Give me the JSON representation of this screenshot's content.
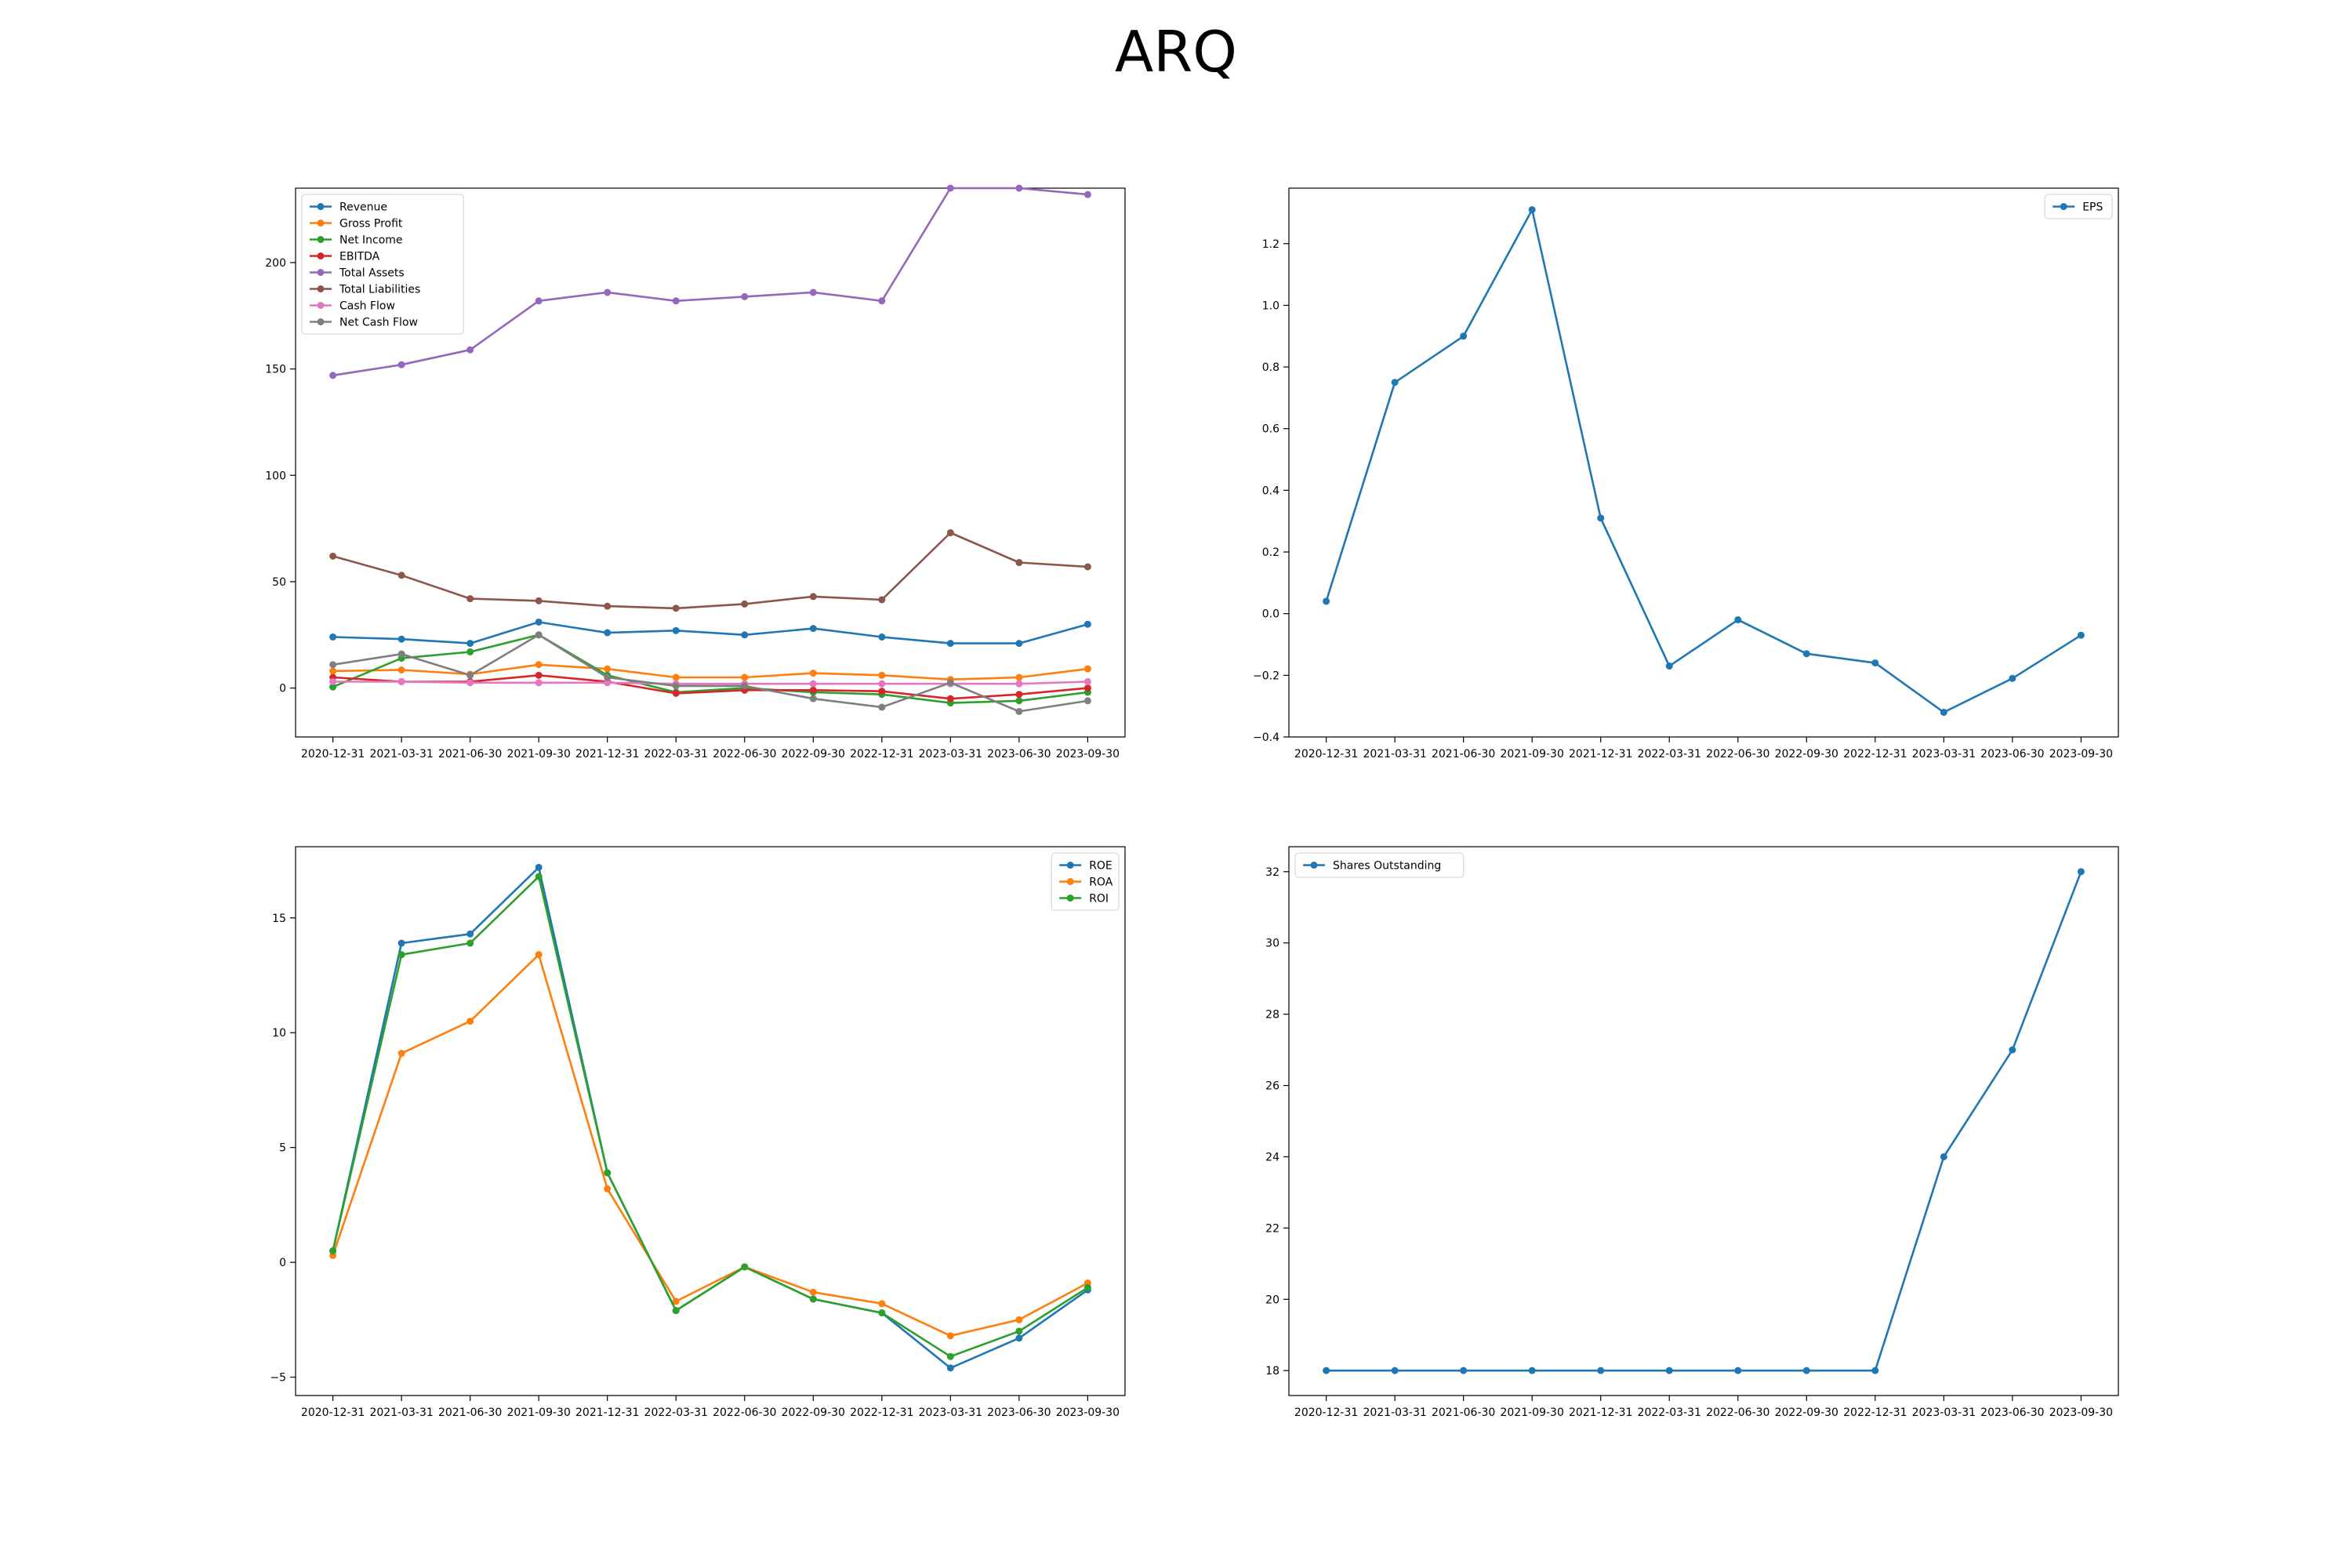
{
  "title": "ARQ",
  "chart_data": [
    {
      "type": "line",
      "x": [
        "2020-12-31",
        "2021-03-31",
        "2021-06-30",
        "2021-09-30",
        "2021-12-31",
        "2022-03-31",
        "2022-06-30",
        "2022-09-30",
        "2022-12-31",
        "2023-03-31",
        "2023-06-30",
        "2023-09-30"
      ],
      "ylim": [
        -23,
        235
      ],
      "yticks": [
        0,
        50,
        100,
        150,
        200
      ],
      "legend_position": "upper-left",
      "grid": false,
      "series": [
        {
          "name": "Revenue",
          "color": "#1f77b4",
          "values": [
            24,
            23,
            21,
            31,
            26,
            27,
            25,
            28,
            24,
            21,
            21,
            30
          ]
        },
        {
          "name": "Gross Profit",
          "color": "#ff7f0e",
          "values": [
            8,
            8.5,
            6.5,
            11,
            9,
            5,
            5,
            7,
            6,
            4,
            5,
            9
          ]
        },
        {
          "name": "Net Income",
          "color": "#2ca02c",
          "values": [
            0.5,
            14,
            17,
            25,
            6,
            -2,
            0,
            -2,
            -3,
            -7,
            -6,
            -2
          ]
        },
        {
          "name": "EBITDA",
          "color": "#d62728",
          "values": [
            5,
            3,
            3,
            6,
            3,
            -2.5,
            -1,
            -1,
            -1.5,
            -5,
            -3,
            0
          ]
        },
        {
          "name": "Total Assets",
          "color": "#9467bd",
          "values": [
            147,
            152,
            159,
            182,
            186,
            182,
            184,
            186,
            182,
            235,
            235,
            232
          ]
        },
        {
          "name": "Total Liabilities",
          "color": "#8c564b",
          "values": [
            62,
            53,
            42,
            41,
            38.5,
            37.5,
            39.5,
            43,
            41.5,
            73,
            59,
            57
          ]
        },
        {
          "name": "Cash Flow",
          "color": "#e377c2",
          "values": [
            3,
            3,
            2.5,
            2.5,
            2.5,
            2,
            2,
            2,
            2,
            2,
            2,
            3
          ]
        },
        {
          "name": "Net Cash Flow",
          "color": "#7f7f7f",
          "values": [
            11,
            16,
            6,
            25,
            5,
            1,
            1,
            -5,
            -9,
            2.5,
            -11,
            -6
          ]
        }
      ]
    },
    {
      "type": "line",
      "x": [
        "2020-12-31",
        "2021-03-31",
        "2021-06-30",
        "2021-09-30",
        "2021-12-31",
        "2022-03-31",
        "2022-06-30",
        "2022-09-30",
        "2022-12-31",
        "2023-03-31",
        "2023-06-30",
        "2023-09-30"
      ],
      "ylim": [
        -0.4,
        1.38
      ],
      "yticks": [
        -0.4,
        -0.2,
        0.0,
        0.2,
        0.4,
        0.6,
        0.8,
        1.0,
        1.2
      ],
      "yticklabels": [
        "−0.4",
        "−0.2",
        "0.0",
        "0.2",
        "0.4",
        "0.6",
        "0.8",
        "1.0",
        "1.2"
      ],
      "legend_position": "upper-right",
      "grid": false,
      "series": [
        {
          "name": "EPS",
          "color": "#1f77b4",
          "values": [
            0.04,
            0.75,
            0.9,
            1.31,
            0.31,
            -0.17,
            -0.02,
            -0.13,
            -0.16,
            -0.32,
            -0.21,
            -0.07
          ]
        }
      ]
    },
    {
      "type": "line",
      "x": [
        "2020-12-31",
        "2021-03-31",
        "2021-06-30",
        "2021-09-30",
        "2021-12-31",
        "2022-03-31",
        "2022-06-30",
        "2022-09-30",
        "2022-12-31",
        "2023-03-31",
        "2023-06-30",
        "2023-09-30"
      ],
      "ylim": [
        -5.8,
        18.1
      ],
      "yticks": [
        -5,
        0,
        5,
        10,
        15
      ],
      "yticklabels": [
        "−5",
        "0",
        "5",
        "10",
        "15"
      ],
      "legend_position": "upper-right",
      "grid": false,
      "series": [
        {
          "name": "ROE",
          "color": "#1f77b4",
          "values": [
            0.5,
            13.9,
            14.3,
            17.2,
            3.9,
            -2.1,
            -0.2,
            -1.6,
            -2.2,
            -4.6,
            -3.3,
            -1.2
          ]
        },
        {
          "name": "ROA",
          "color": "#ff7f0e",
          "values": [
            0.3,
            9.1,
            10.5,
            13.4,
            3.2,
            -1.7,
            -0.2,
            -1.3,
            -1.8,
            -3.2,
            -2.5,
            -0.9
          ]
        },
        {
          "name": "ROI",
          "color": "#2ca02c",
          "values": [
            0.5,
            13.4,
            13.9,
            16.8,
            3.9,
            -2.1,
            -0.2,
            -1.6,
            -2.2,
            -4.1,
            -3.0,
            -1.1
          ]
        }
      ]
    },
    {
      "type": "line",
      "x": [
        "2020-12-31",
        "2021-03-31",
        "2021-06-30",
        "2021-09-30",
        "2021-12-31",
        "2022-03-31",
        "2022-06-30",
        "2022-09-30",
        "2022-12-31",
        "2023-03-31",
        "2023-06-30",
        "2023-09-30"
      ],
      "ylim": [
        17.3,
        32.7
      ],
      "yticks": [
        18,
        20,
        22,
        24,
        26,
        28,
        30,
        32
      ],
      "legend_position": "upper-left",
      "grid": false,
      "series": [
        {
          "name": "Shares Outstanding",
          "color": "#1f77b4",
          "values": [
            18,
            18,
            18,
            18,
            18,
            18,
            18,
            18,
            18,
            24,
            27,
            32
          ]
        }
      ]
    }
  ]
}
